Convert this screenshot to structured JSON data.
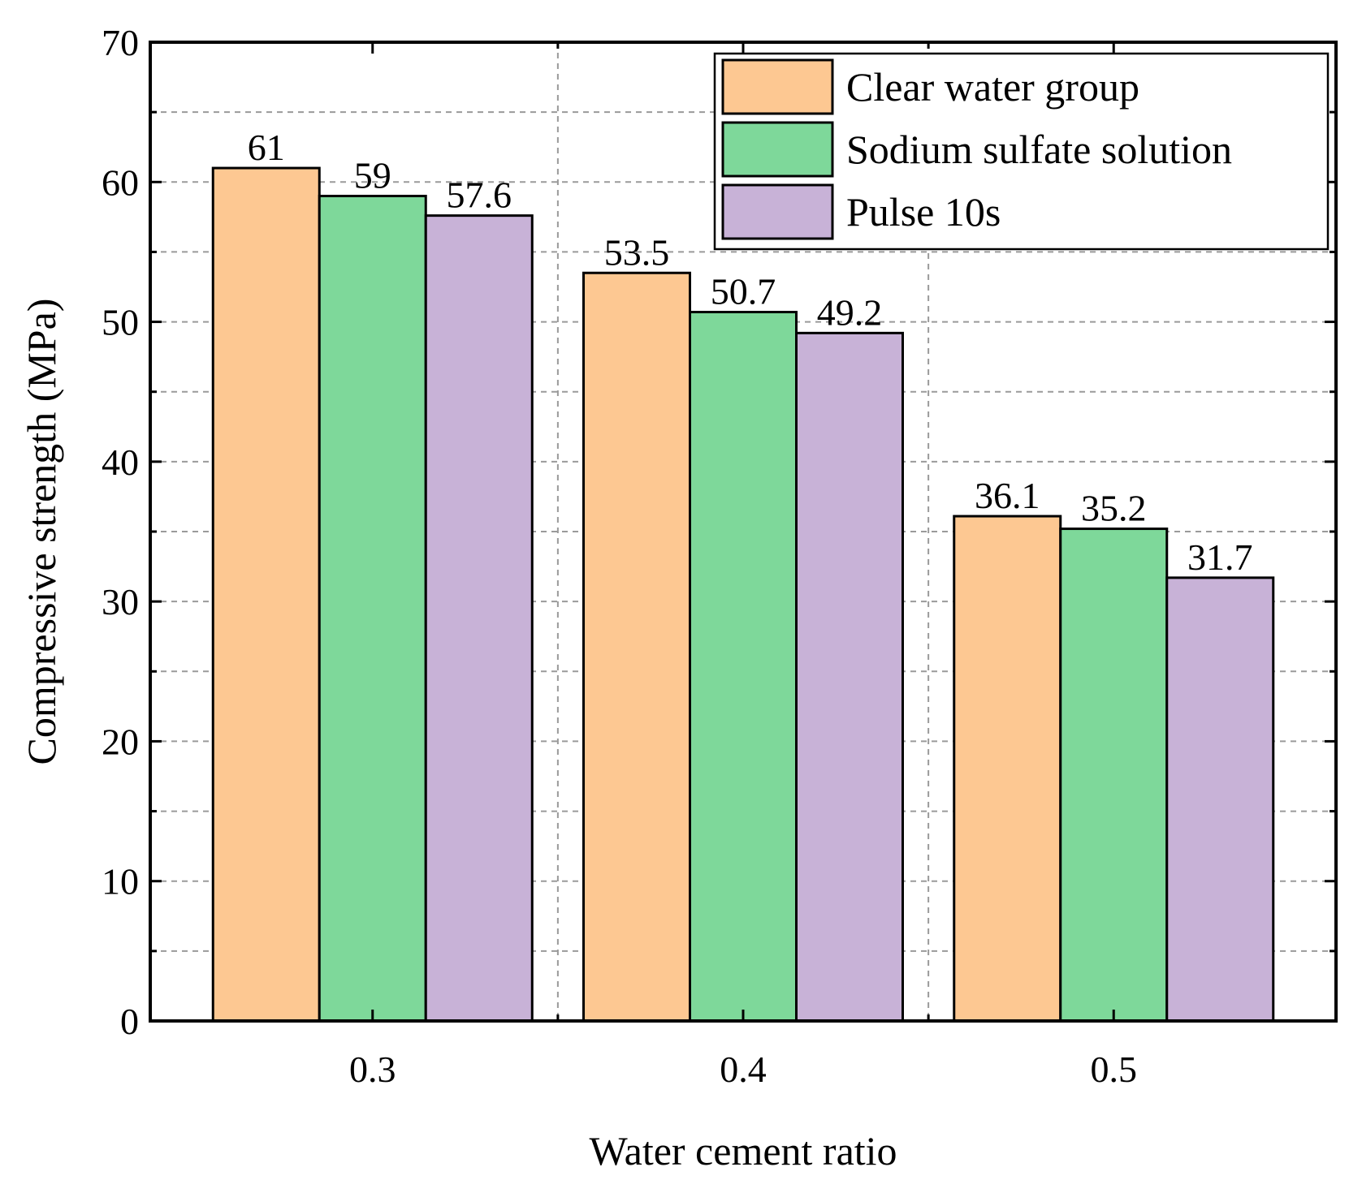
{
  "chart_data": {
    "type": "bar",
    "title": "",
    "xlabel": "Water cement ratio",
    "ylabel": "Compressive strength (MPa)",
    "categories": [
      "0.3",
      "0.4",
      "0.5"
    ],
    "ylim": [
      0,
      70
    ],
    "yticks": [
      0,
      10,
      20,
      30,
      40,
      50,
      60,
      70
    ],
    "grid": true,
    "legend_position": "top-right",
    "series": [
      {
        "name": "Clear water group",
        "color": "#FDC892",
        "values": [
          61,
          53.5,
          36.1
        ],
        "labels": [
          "61",
          "53.5",
          "36.1"
        ]
      },
      {
        "name": "Sodium sulfate solution",
        "color": "#7ED89A",
        "values": [
          59,
          50.7,
          35.2
        ],
        "labels": [
          "59",
          "50.7",
          "35.2"
        ]
      },
      {
        "name": "Pulse 10s",
        "color": "#C8B2D7",
        "values": [
          57.6,
          49.2,
          31.7
        ],
        "labels": [
          "57.6",
          "49.2",
          "31.7"
        ]
      }
    ]
  }
}
